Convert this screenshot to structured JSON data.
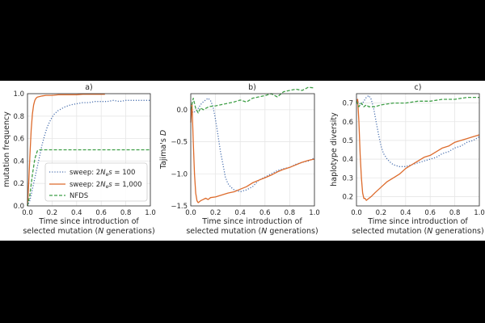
{
  "colors": {
    "sweep_100": "#4c72b0",
    "sweep_1000": "#dd6b2c",
    "nfds": "#3f9f47"
  },
  "legend": {
    "panel": "a",
    "entries": [
      {
        "series_index": 0,
        "prefix": "sweep: 2",
        "N": "N",
        "e": "e",
        "s": "s",
        "suffix": " = 100",
        "style": "dotted",
        "color": "#4c72b0"
      },
      {
        "series_index": 1,
        "prefix": "sweep: 2",
        "N": "N",
        "e": "e",
        "s": "s",
        "suffix": " = 1,000",
        "style": "solid",
        "color": "#dd6b2c"
      },
      {
        "series_index": 2,
        "text": "NFDS",
        "style": "dashed",
        "color": "#3f9f47"
      }
    ]
  },
  "chart_data": [
    {
      "id": "a",
      "type": "line",
      "title": "a)",
      "xlabel_line1": "Time since introduction of",
      "xlabel_line2_pre": "selected mutation (",
      "xlabel_line2_italic": "N",
      "xlabel_line2_post": " generations)",
      "ylabel": "mutation frequency",
      "xlim": [
        0,
        1
      ],
      "ylim": [
        0,
        1
      ],
      "xticks": [
        "0.0",
        "0.2",
        "0.4",
        "0.6",
        "0.8",
        "1.0"
      ],
      "xtick_values": [
        0,
        0.2,
        0.4,
        0.6,
        0.8,
        1.0
      ],
      "yticks": [
        "0.0",
        "0.2",
        "0.4",
        "0.6",
        "0.8",
        "1.0"
      ],
      "ytick_values": [
        0,
        0.2,
        0.4,
        0.6,
        0.8,
        1.0
      ],
      "grid": true,
      "series": [
        {
          "x": [
            0,
            0.02,
            0.04,
            0.06,
            0.08,
            0.1,
            0.12,
            0.14,
            0.16,
            0.18,
            0.2,
            0.22,
            0.25,
            0.3,
            0.35,
            0.4,
            0.45,
            0.5,
            0.55,
            0.6,
            0.65,
            0.7,
            0.75,
            0.8,
            0.85,
            0.9,
            0.95,
            1.0
          ],
          "y": [
            0,
            0.05,
            0.15,
            0.25,
            0.35,
            0.45,
            0.55,
            0.63,
            0.7,
            0.75,
            0.79,
            0.82,
            0.85,
            0.88,
            0.9,
            0.91,
            0.92,
            0.92,
            0.93,
            0.93,
            0.93,
            0.94,
            0.93,
            0.94,
            0.94,
            0.94,
            0.94,
            0.94
          ]
        },
        {
          "x": [
            0,
            0.01,
            0.02,
            0.03,
            0.04,
            0.05,
            0.06,
            0.07,
            0.08,
            0.1,
            0.12,
            0.15,
            0.2,
            0.25,
            0.3,
            0.35,
            0.4,
            0.45,
            0.5,
            0.55,
            0.6,
            0.63
          ],
          "y": [
            0,
            0.2,
            0.45,
            0.68,
            0.82,
            0.9,
            0.94,
            0.96,
            0.97,
            0.975,
            0.98,
            0.985,
            0.985,
            0.99,
            0.99,
            0.99,
            0.99,
            0.995,
            0.995,
            0.995,
            0.995,
            0.995
          ]
        },
        {
          "x": [
            0,
            0.02,
            0.04,
            0.06,
            0.08,
            0.1,
            0.15,
            0.2,
            0.3,
            0.4,
            0.5,
            0.6,
            0.7,
            0.8,
            0.9,
            1.0
          ],
          "y": [
            0,
            0.1,
            0.28,
            0.42,
            0.49,
            0.5,
            0.5,
            0.5,
            0.5,
            0.5,
            0.5,
            0.5,
            0.5,
            0.5,
            0.5,
            0.5
          ]
        }
      ]
    },
    {
      "id": "b",
      "type": "line",
      "title": "b)",
      "xlabel_line1": "Time since introduction of",
      "xlabel_line2_pre": "selected mutation (",
      "xlabel_line2_italic": "N",
      "xlabel_line2_post": " generations)",
      "ylabel_pre": "Tajima's ",
      "ylabel_italic": "D",
      "xlim": [
        0,
        1
      ],
      "ylim": [
        -1.5,
        0.25
      ],
      "xticks": [
        "0.0",
        "0.2",
        "0.4",
        "0.6",
        "0.8",
        "1.0"
      ],
      "xtick_values": [
        0,
        0.2,
        0.4,
        0.6,
        0.8,
        1.0
      ],
      "yticks": [
        "0.0",
        "−0.5",
        "−1.0",
        "−1.5"
      ],
      "ytick_values": [
        0,
        -0.5,
        -1.0,
        -1.5
      ],
      "grid": true,
      "series": [
        {
          "x": [
            0,
            0.02,
            0.04,
            0.06,
            0.08,
            0.1,
            0.12,
            0.14,
            0.16,
            0.18,
            0.2,
            0.22,
            0.24,
            0.26,
            0.28,
            0.3,
            0.32,
            0.35,
            0.4,
            0.45,
            0.5,
            0.55,
            0.6,
            0.65,
            0.7,
            0.75,
            0.8,
            0.85,
            0.9,
            0.95,
            1.0
          ],
          "y": [
            0,
            -0.05,
            -0.02,
            0.02,
            0.08,
            0.12,
            0.15,
            0.18,
            0.14,
            0.05,
            -0.15,
            -0.4,
            -0.65,
            -0.85,
            -1.05,
            -1.15,
            -1.2,
            -1.25,
            -1.28,
            -1.25,
            -1.2,
            -1.1,
            -1.05,
            -1.0,
            -0.95,
            -0.92,
            -0.9,
            -0.85,
            -0.82,
            -0.8,
            -0.75
          ]
        },
        {
          "x": [
            0,
            0.01,
            0.02,
            0.03,
            0.04,
            0.05,
            0.06,
            0.08,
            0.1,
            0.12,
            0.14,
            0.16,
            0.2,
            0.25,
            0.3,
            0.35,
            0.4,
            0.45,
            0.5,
            0.55,
            0.6,
            0.65,
            0.7,
            0.75,
            0.8,
            0.85,
            0.9,
            0.95,
            1.0
          ],
          "y": [
            -0.2,
            0.1,
            -0.5,
            -1.0,
            -1.3,
            -1.42,
            -1.45,
            -1.42,
            -1.4,
            -1.38,
            -1.4,
            -1.37,
            -1.36,
            -1.33,
            -1.3,
            -1.28,
            -1.24,
            -1.2,
            -1.14,
            -1.1,
            -1.06,
            -1.02,
            -0.97,
            -0.93,
            -0.9,
            -0.86,
            -0.82,
            -0.79,
            -0.77
          ]
        },
        {
          "x": [
            0,
            0.02,
            0.04,
            0.06,
            0.08,
            0.1,
            0.15,
            0.2,
            0.25,
            0.3,
            0.35,
            0.4,
            0.45,
            0.5,
            0.55,
            0.6,
            0.65,
            0.7,
            0.75,
            0.8,
            0.85,
            0.9,
            0.95,
            1.0
          ],
          "y": [
            0,
            0.18,
            0.02,
            -0.05,
            0.03,
            0.0,
            0.05,
            0.06,
            0.08,
            0.1,
            0.12,
            0.15,
            0.12,
            0.18,
            0.2,
            0.22,
            0.25,
            0.2,
            0.28,
            0.3,
            0.32,
            0.3,
            0.35,
            0.34
          ]
        }
      ]
    },
    {
      "id": "c",
      "type": "line",
      "title": "c)",
      "xlabel_line1": "Time since introduction of",
      "xlabel_line2_pre": "selected mutation (",
      "xlabel_line2_italic": "N",
      "xlabel_line2_post": " generations)",
      "ylabel": "haplotype diversity",
      "xlim": [
        0,
        1
      ],
      "ylim": [
        0.15,
        0.75
      ],
      "xticks": [
        "0.0",
        "0.2",
        "0.4",
        "0.6",
        "0.8",
        "1.0"
      ],
      "xtick_values": [
        0,
        0.2,
        0.4,
        0.6,
        0.8,
        1.0
      ],
      "yticks": [
        "0.2",
        "0.3",
        "0.4",
        "0.5",
        "0.6",
        "0.7"
      ],
      "ytick_values": [
        0.2,
        0.3,
        0.4,
        0.5,
        0.6,
        0.7
      ],
      "grid": true,
      "series": [
        {
          "x": [
            0,
            0.02,
            0.04,
            0.06,
            0.08,
            0.1,
            0.12,
            0.14,
            0.16,
            0.18,
            0.2,
            0.22,
            0.25,
            0.28,
            0.3,
            0.35,
            0.4,
            0.45,
            0.5,
            0.55,
            0.6,
            0.65,
            0.7,
            0.75,
            0.8,
            0.85,
            0.9,
            0.95,
            1.0
          ],
          "y": [
            0.72,
            0.7,
            0.69,
            0.71,
            0.73,
            0.74,
            0.72,
            0.67,
            0.6,
            0.53,
            0.47,
            0.43,
            0.4,
            0.38,
            0.37,
            0.36,
            0.36,
            0.37,
            0.38,
            0.39,
            0.4,
            0.41,
            0.43,
            0.44,
            0.46,
            0.47,
            0.49,
            0.5,
            0.52
          ]
        },
        {
          "x": [
            0,
            0.01,
            0.02,
            0.03,
            0.04,
            0.05,
            0.06,
            0.07,
            0.08,
            0.1,
            0.12,
            0.15,
            0.2,
            0.25,
            0.3,
            0.35,
            0.4,
            0.45,
            0.5,
            0.55,
            0.6,
            0.65,
            0.7,
            0.75,
            0.8,
            0.85,
            0.9,
            0.95,
            1.0
          ],
          "y": [
            0.7,
            0.72,
            0.6,
            0.42,
            0.3,
            0.22,
            0.19,
            0.19,
            0.18,
            0.19,
            0.2,
            0.22,
            0.25,
            0.28,
            0.3,
            0.32,
            0.35,
            0.37,
            0.39,
            0.41,
            0.42,
            0.44,
            0.46,
            0.47,
            0.49,
            0.5,
            0.51,
            0.52,
            0.53
          ]
        },
        {
          "x": [
            0,
            0.02,
            0.04,
            0.06,
            0.08,
            0.1,
            0.15,
            0.2,
            0.3,
            0.4,
            0.5,
            0.6,
            0.7,
            0.8,
            0.9,
            1.0
          ],
          "y": [
            0.71,
            0.68,
            0.7,
            0.68,
            0.69,
            0.68,
            0.68,
            0.69,
            0.7,
            0.7,
            0.71,
            0.71,
            0.72,
            0.72,
            0.73,
            0.73
          ]
        }
      ]
    }
  ]
}
